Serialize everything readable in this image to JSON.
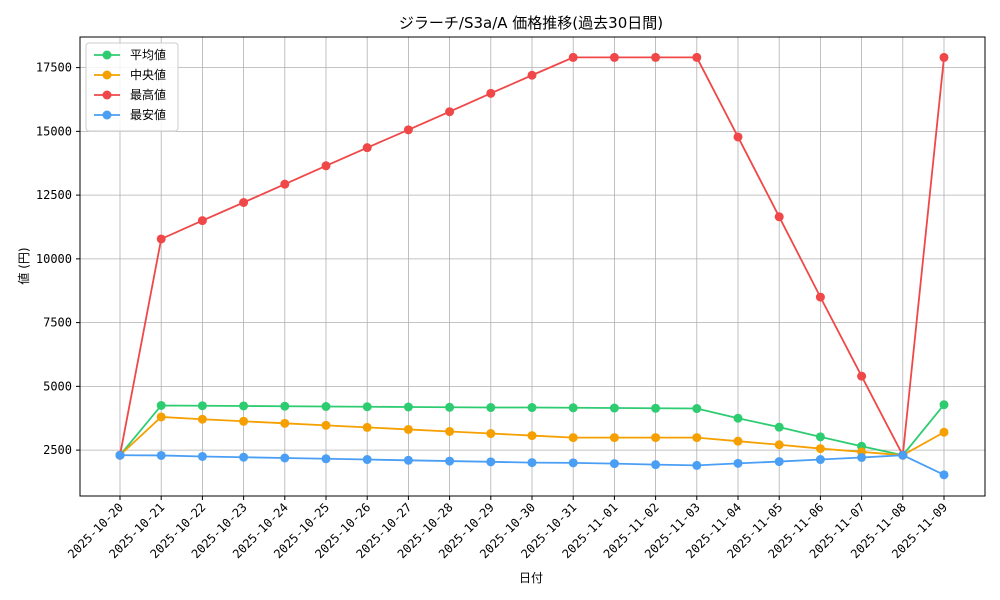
{
  "chart_data": {
    "type": "line",
    "title": "ジラーチ/S3a/A 価格推移(過去30日間)",
    "xlabel": "日付",
    "ylabel": "値 (円)",
    "categories": [
      "2025-10-20",
      "2025-10-21",
      "2025-10-22",
      "2025-10-23",
      "2025-10-24",
      "2025-10-25",
      "2025-10-26",
      "2025-10-27",
      "2025-10-28",
      "2025-10-29",
      "2025-10-30",
      "2025-10-31",
      "2025-11-01",
      "2025-11-02",
      "2025-11-03",
      "2025-11-04",
      "2025-11-05",
      "2025-11-06",
      "2025-11-07",
      "2025-11-08",
      "2025-11-09"
    ],
    "yticks": [
      2500,
      5000,
      7500,
      10000,
      12500,
      15000,
      17500
    ],
    "ylim": [
      700,
      18700
    ],
    "grid": true,
    "legend_position": "top-left",
    "series": [
      {
        "name": "平均値",
        "color": "#2ecc71",
        "values": [
          2300,
          4250,
          4240,
          4230,
          4220,
          4210,
          4200,
          4190,
          4180,
          4170,
          4170,
          4160,
          4150,
          4140,
          4130,
          3750,
          3400,
          3020,
          2650,
          2300,
          4280
        ]
      },
      {
        "name": "中央値",
        "color": "#f5a000",
        "values": [
          2300,
          3800,
          3710,
          3630,
          3550,
          3470,
          3390,
          3310,
          3230,
          3150,
          3070,
          2990,
          2990,
          2990,
          2990,
          2850,
          2710,
          2560,
          2430,
          2300,
          3200
        ]
      },
      {
        "name": "最高値",
        "color": "#f04848",
        "values": [
          2300,
          10780,
          11500,
          12210,
          12930,
          13650,
          14360,
          15060,
          15770,
          16490,
          17200,
          17900,
          17900,
          17900,
          17900,
          14780,
          11650,
          8500,
          5400,
          2300,
          17900
        ]
      },
      {
        "name": "最安値",
        "color": "#4a9ff5",
        "values": [
          2300,
          2290,
          2250,
          2220,
          2190,
          2160,
          2130,
          2100,
          2070,
          2040,
          2010,
          2000,
          1970,
          1930,
          1900,
          1980,
          2050,
          2130,
          2210,
          2300,
          1530
        ]
      }
    ]
  }
}
